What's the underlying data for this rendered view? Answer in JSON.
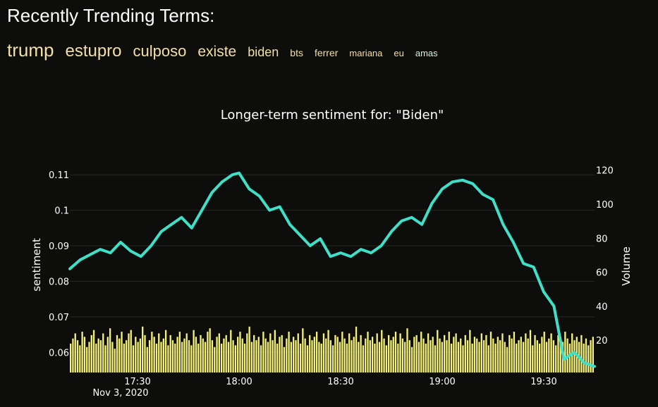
{
  "header": {
    "title": "Recently Trending Terms:"
  },
  "trending_terms": [
    "trump",
    "estupro",
    "culposo",
    "existe",
    "biden",
    "bts",
    "ferrer",
    "mariana",
    "eu",
    "amas"
  ],
  "colors": {
    "background": "#0d0e0b",
    "sentiment_line": "#40e0c8",
    "volume_bars": "#f6f37a",
    "term_text": "#f5dfa8"
  },
  "chart_data": {
    "type": "line",
    "title": "Longer-term sentiment for: \"Biden\"",
    "ylabel": "sentiment",
    "y2label": "Volume",
    "xlabel": "",
    "x_ticks": [
      "17:30",
      "18:00",
      "18:30",
      "19:00",
      "19:30"
    ],
    "x_tick_sublabel": "Nov 3, 2020",
    "x_range": [
      "17:10",
      "19:45"
    ],
    "ylim": [
      0.0543,
      0.1156
    ],
    "y_ticks": [
      0.06,
      0.07,
      0.08,
      0.09,
      0.1,
      0.11
    ],
    "y_tick_labels": [
      "0.06",
      "0.07",
      "0.08",
      "0.09",
      "0.1",
      "0.11"
    ],
    "y2lim": [
      1,
      129
    ],
    "y2_ticks": [
      20,
      40,
      60,
      80,
      100,
      120
    ],
    "grid": true,
    "legend": "none",
    "series": [
      {
        "axis": "y",
        "kind": "line",
        "x": [
          "17:10",
          "17:13",
          "17:16",
          "17:19",
          "17:22",
          "17:25",
          "17:28",
          "17:31",
          "17:34",
          "17:37",
          "17:40",
          "17:43",
          "17:46",
          "17:49",
          "17:52",
          "17:55",
          "17:58",
          "18:00",
          "18:03",
          "18:06",
          "18:09",
          "18:12",
          "18:15",
          "18:18",
          "18:21",
          "18:24",
          "18:27",
          "18:30",
          "18:33",
          "18:36",
          "18:39",
          "18:42",
          "18:45",
          "18:48",
          "18:51",
          "18:54",
          "18:57",
          "19:00",
          "19:03",
          "19:06",
          "19:09",
          "19:12",
          "19:15",
          "19:18",
          "19:21",
          "19:24",
          "19:27",
          "19:30",
          "19:33",
          "19:36",
          "19:39",
          "19:42",
          "19:45"
        ],
        "values": [
          0.0835,
          0.086,
          0.0875,
          0.089,
          0.088,
          0.091,
          0.0885,
          0.087,
          0.09,
          0.094,
          0.096,
          0.098,
          0.095,
          0.1,
          0.105,
          0.108,
          0.11,
          0.1105,
          0.106,
          0.104,
          0.1,
          0.101,
          0.096,
          0.093,
          0.09,
          0.092,
          0.087,
          0.088,
          0.087,
          0.089,
          0.088,
          0.09,
          0.094,
          0.097,
          0.098,
          0.096,
          0.102,
          0.106,
          0.108,
          0.1085,
          0.1075,
          0.1045,
          0.103,
          0.096,
          0.091,
          0.085,
          0.084,
          0.077,
          0.073,
          0.058,
          0.06,
          0.057,
          0.056
        ]
      }
    ],
    "volume": {
      "axis": "y2",
      "kind": "bar",
      "values": [
        18,
        21,
        24,
        20,
        17,
        25,
        22,
        16,
        19,
        23,
        26,
        18,
        21,
        20,
        24,
        17,
        22,
        27,
        19,
        15,
        23,
        21,
        25,
        18,
        20,
        24,
        26,
        17,
        22,
        19,
        21,
        28,
        23,
        16,
        20,
        25,
        22,
        18,
        24,
        19,
        21,
        26,
        17,
        23,
        20,
        18,
        22,
        25,
        19,
        21,
        24,
        20,
        17,
        26,
        22,
        18,
        23,
        21,
        19,
        25,
        27,
        20,
        16,
        22,
        24,
        18,
        21,
        23,
        19,
        26,
        20,
        17,
        22,
        25,
        21,
        18,
        24,
        28,
        19,
        23,
        20,
        22,
        17,
        25,
        21,
        19,
        24,
        20,
        26,
        18,
        22,
        23,
        16,
        21,
        25,
        19,
        22,
        20,
        24,
        18,
        27,
        21,
        17,
        23,
        20,
        22,
        25,
        19,
        18,
        24,
        21,
        26,
        20,
        17,
        23,
        22,
        19,
        25,
        21,
        18,
        24,
        20,
        22,
        28,
        19,
        23,
        17,
        21,
        25,
        20,
        22,
        18,
        24,
        19,
        26,
        21,
        17,
        23,
        20,
        22,
        25,
        18,
        24,
        21,
        19,
        27,
        20,
        16,
        22,
        23,
        19,
        25,
        21,
        18,
        24,
        20,
        22,
        17,
        26,
        21,
        19,
        23,
        20,
        25,
        18,
        22,
        24,
        19,
        21,
        17,
        23,
        20,
        26,
        18,
        22,
        21,
        19,
        24,
        20,
        23,
        17,
        25,
        21,
        18,
        22,
        20,
        24,
        19,
        16,
        23,
        21,
        25,
        18,
        20,
        22,
        19,
        24,
        21,
        26,
        17,
        23,
        20,
        18,
        22,
        25,
        19,
        21,
        24,
        20,
        17,
        23,
        22,
        19,
        25,
        21,
        18,
        24,
        20,
        22,
        19,
        23,
        18,
        21,
        17,
        20,
        22
      ]
    }
  }
}
